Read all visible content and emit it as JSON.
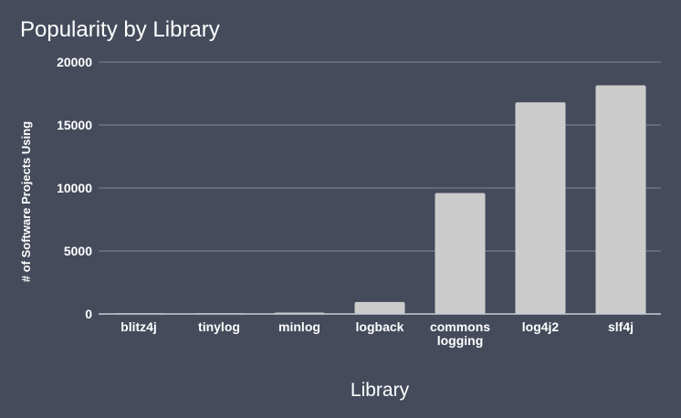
{
  "colors": {
    "background": "#454b5b",
    "bar": "#cccccc",
    "text": "#ffffff",
    "grid": "#80899a",
    "axis": "#c8ccd4"
  },
  "chart_data": {
    "type": "bar",
    "title": "Popularity by Library",
    "xlabel": "Library",
    "ylabel": "# of Software Projects Using",
    "categories": [
      "blitz4j",
      "tinylog",
      "minlog",
      "logback",
      "commons logging",
      "log4j2",
      "slf4j"
    ],
    "category_labels": [
      [
        "blitz4j"
      ],
      [
        "tinylog"
      ],
      [
        "minlog"
      ],
      [
        "logback"
      ],
      [
        "commons",
        "logging"
      ],
      [
        "log4j2"
      ],
      [
        "slf4j"
      ]
    ],
    "values": [
      15,
      20,
      110,
      950,
      9600,
      16800,
      18150
    ],
    "yticks": [
      0,
      5000,
      10000,
      15000,
      20000
    ],
    "ylim": [
      0,
      20000
    ],
    "grid": true,
    "legend": "none"
  }
}
